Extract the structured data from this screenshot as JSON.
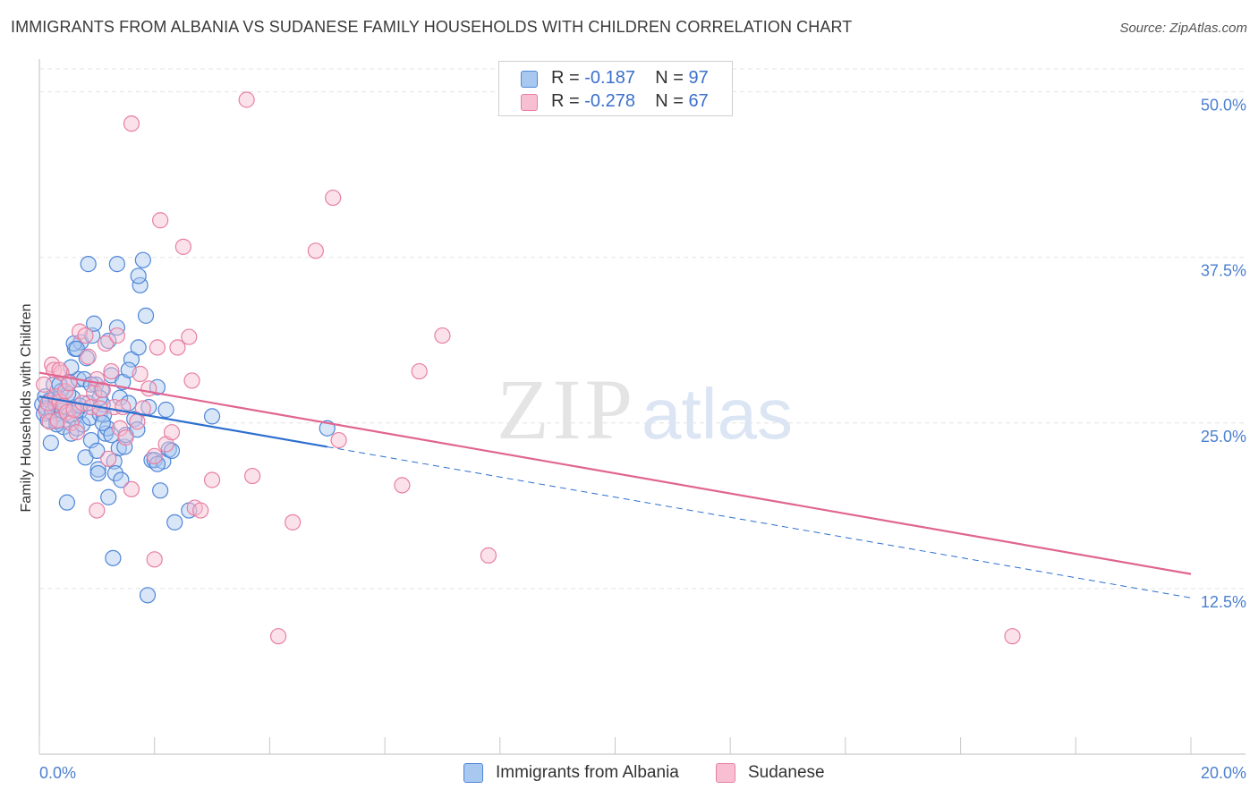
{
  "header": {
    "title": "IMMIGRANTS FROM ALBANIA VS SUDANESE FAMILY HOUSEHOLDS WITH CHILDREN CORRELATION CHART",
    "source": "Source: ZipAtlas.com"
  },
  "watermark": {
    "zip": "ZIP",
    "atlas": "atlas"
  },
  "legend": {
    "rows": [
      {
        "r_label": "R =",
        "r_value": "-0.187",
        "n_label": "N =",
        "n_value": "97"
      },
      {
        "r_label": "R =",
        "r_value": "-0.278",
        "n_label": "N =",
        "n_value": "67"
      }
    ]
  },
  "bottom_legend": {
    "albania": "Immigrants from Albania",
    "sudanese": "Sudanese"
  },
  "colors": {
    "albania_fill": "#a9c8f0",
    "albania_stroke": "#4f86d8",
    "albania_line": "#2d6fcf",
    "sudanese_fill": "#f7bfd1",
    "sudanese_stroke": "#e87fa3",
    "sudanese_line": "#e06590",
    "tick_text": "#4a7fd0",
    "grid": "#e3e3e3"
  },
  "chart_data": {
    "type": "scatter",
    "title": "IMMIGRANTS FROM ALBANIA VS SUDANESE FAMILY HOUSEHOLDS WITH CHILDREN CORRELATION CHART",
    "xlabel": "",
    "ylabel": "Family Households with Children",
    "xlim": [
      0,
      20
    ],
    "ylim": [
      0,
      52
    ],
    "x_ticks": [
      "0.0%",
      "20.0%"
    ],
    "y_ticks": [
      {
        "value": 12.5,
        "label": "12.5%"
      },
      {
        "value": 25,
        "label": "25.0%"
      },
      {
        "value": 37.5,
        "label": "37.5%"
      },
      {
        "value": 50,
        "label": "50.0%"
      }
    ],
    "series": [
      {
        "name": "Immigrants from Albania",
        "r": -0.187,
        "n": 97,
        "trend": {
          "x0": 0,
          "y0": 27.0,
          "x1": 5.0,
          "y1": 23.2,
          "dash_to_x": 20,
          "dash_to_y": 11.8
        },
        "points": [
          [
            0.05,
            26.4
          ],
          [
            0.08,
            25.7
          ],
          [
            0.1,
            27.0
          ],
          [
            0.12,
            26.1
          ],
          [
            0.15,
            25.2
          ],
          [
            0.18,
            26.7
          ],
          [
            0.2,
            23.5
          ],
          [
            0.22,
            25.8
          ],
          [
            0.25,
            27.9
          ],
          [
            0.28,
            26.4
          ],
          [
            0.3,
            25.1
          ],
          [
            0.35,
            26.8
          ],
          [
            0.38,
            27.4
          ],
          [
            0.4,
            25.9
          ],
          [
            0.42,
            24.7
          ],
          [
            0.45,
            26.2
          ],
          [
            0.48,
            19.0
          ],
          [
            0.5,
            25.6
          ],
          [
            0.52,
            28.1
          ],
          [
            0.55,
            24.2
          ],
          [
            0.58,
            26.9
          ],
          [
            0.6,
            25.4
          ],
          [
            0.62,
            30.6
          ],
          [
            0.65,
            24.6
          ],
          [
            0.68,
            28.3
          ],
          [
            0.7,
            25.9
          ],
          [
            0.72,
            31.1
          ],
          [
            0.75,
            24.9
          ],
          [
            0.78,
            28.3
          ],
          [
            0.8,
            22.4
          ],
          [
            0.82,
            29.9
          ],
          [
            0.85,
            26.5
          ],
          [
            0.88,
            25.4
          ],
          [
            0.9,
            23.7
          ],
          [
            0.92,
            31.6
          ],
          [
            0.95,
            32.5
          ],
          [
            0.98,
            27.9
          ],
          [
            1.0,
            22.9
          ],
          [
            1.02,
            21.5
          ],
          [
            1.05,
            25.7
          ],
          [
            1.08,
            27.5
          ],
          [
            1.1,
            26.4
          ],
          [
            1.12,
            25.6
          ],
          [
            1.15,
            24.2
          ],
          [
            1.18,
            24.6
          ],
          [
            1.2,
            19.4
          ],
          [
            1.25,
            28.6
          ],
          [
            1.28,
            14.8
          ],
          [
            1.3,
            22.1
          ],
          [
            1.32,
            21.2
          ],
          [
            1.35,
            32.2
          ],
          [
            1.38,
            23.1
          ],
          [
            1.4,
            26.9
          ],
          [
            1.42,
            20.7
          ],
          [
            1.45,
            28.1
          ],
          [
            1.48,
            23.2
          ],
          [
            1.5,
            24.1
          ],
          [
            1.55,
            26.5
          ],
          [
            1.6,
            29.8
          ],
          [
            1.65,
            25.3
          ],
          [
            1.7,
            24.5
          ],
          [
            1.75,
            35.4
          ],
          [
            1.8,
            37.3
          ],
          [
            1.85,
            33.1
          ],
          [
            1.88,
            12.0
          ],
          [
            1.9,
            26.2
          ],
          [
            1.95,
            22.2
          ],
          [
            2.0,
            22.2
          ],
          [
            2.05,
            27.7
          ],
          [
            2.1,
            19.9
          ],
          [
            2.15,
            22.1
          ],
          [
            2.2,
            26.0
          ],
          [
            2.25,
            23.0
          ],
          [
            2.35,
            17.5
          ],
          [
            2.6,
            18.4
          ],
          [
            3.0,
            25.5
          ],
          [
            2.3,
            22.9
          ],
          [
            0.85,
            37.0
          ],
          [
            1.35,
            37.0
          ],
          [
            0.6,
            31.0
          ],
          [
            1.05,
            26.9
          ],
          [
            1.72,
            36.1
          ],
          [
            1.72,
            30.7
          ],
          [
            1.2,
            31.2
          ],
          [
            0.3,
            24.9
          ],
          [
            0.5,
            27.2
          ],
          [
            0.55,
            29.2
          ],
          [
            0.35,
            27.9
          ],
          [
            1.55,
            29.0
          ],
          [
            0.7,
            26.3
          ],
          [
            0.9,
            27.9
          ],
          [
            1.1,
            25.0
          ],
          [
            1.25,
            24.1
          ],
          [
            2.05,
            21.9
          ],
          [
            1.02,
            21.2
          ],
          [
            0.65,
            30.6
          ],
          [
            5.0,
            24.6
          ]
        ]
      },
      {
        "name": "Sudanese",
        "r": -0.278,
        "n": 67,
        "trend": {
          "x0": 0,
          "y0": 28.8,
          "x1": 20,
          "y1": 13.6
        },
        "points": [
          [
            0.08,
            27.9
          ],
          [
            0.12,
            25.9
          ],
          [
            0.15,
            26.5
          ],
          [
            0.18,
            25.1
          ],
          [
            0.22,
            29.4
          ],
          [
            0.25,
            29.0
          ],
          [
            0.28,
            27.0
          ],
          [
            0.32,
            25.2
          ],
          [
            0.35,
            26.6
          ],
          [
            0.38,
            28.8
          ],
          [
            0.42,
            26.3
          ],
          [
            0.45,
            27.4
          ],
          [
            0.48,
            25.8
          ],
          [
            0.52,
            28.0
          ],
          [
            0.55,
            25.0
          ],
          [
            0.6,
            26.0
          ],
          [
            0.65,
            24.3
          ],
          [
            0.7,
            31.9
          ],
          [
            0.75,
            26.5
          ],
          [
            0.8,
            31.6
          ],
          [
            0.85,
            30.0
          ],
          [
            0.9,
            26.2
          ],
          [
            0.95,
            27.3
          ],
          [
            1.0,
            28.3
          ],
          [
            1.05,
            26.1
          ],
          [
            1.1,
            27.5
          ],
          [
            1.15,
            31.0
          ],
          [
            1.2,
            22.3
          ],
          [
            1.25,
            28.9
          ],
          [
            1.3,
            26.2
          ],
          [
            1.35,
            31.6
          ],
          [
            1.4,
            24.6
          ],
          [
            1.45,
            26.2
          ],
          [
            1.5,
            23.9
          ],
          [
            1.6,
            47.6
          ],
          [
            1.7,
            25.1
          ],
          [
            1.75,
            28.7
          ],
          [
            1.8,
            26.1
          ],
          [
            1.9,
            27.6
          ],
          [
            2.0,
            22.5
          ],
          [
            2.05,
            30.7
          ],
          [
            2.1,
            40.3
          ],
          [
            2.2,
            23.4
          ],
          [
            2.3,
            24.3
          ],
          [
            2.4,
            30.7
          ],
          [
            2.5,
            38.3
          ],
          [
            2.6,
            31.5
          ],
          [
            2.65,
            28.2
          ],
          [
            2.7,
            18.6
          ],
          [
            2.8,
            18.4
          ],
          [
            3.0,
            20.7
          ],
          [
            3.6,
            49.4
          ],
          [
            3.7,
            21.0
          ],
          [
            4.15,
            8.9
          ],
          [
            4.4,
            17.5
          ],
          [
            4.8,
            38.0
          ],
          [
            5.1,
            42.0
          ],
          [
            5.2,
            23.7
          ],
          [
            6.3,
            20.3
          ],
          [
            6.6,
            28.9
          ],
          [
            7.0,
            31.6
          ],
          [
            7.8,
            15.0
          ],
          [
            16.9,
            8.9
          ],
          [
            1.6,
            20.0
          ],
          [
            1.0,
            18.4
          ],
          [
            2.0,
            14.7
          ],
          [
            0.35,
            29.0
          ]
        ]
      }
    ]
  }
}
